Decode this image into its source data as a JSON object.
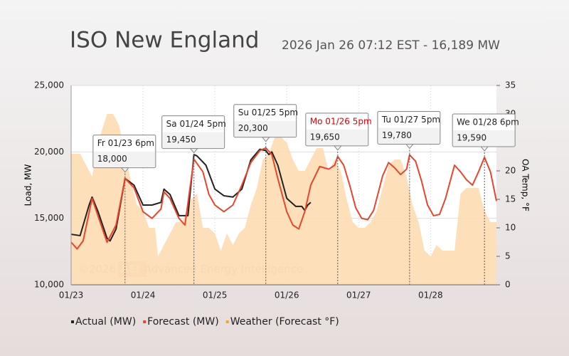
{
  "chart_data": {
    "type": "line",
    "title": "ISO New England",
    "subtitle": "2026 Jan 26 07:12 EST - 16,189 MW",
    "ylabel": "Load, MW",
    "y2label": "OA Temp, °F",
    "watermark": {
      "year": "©2026",
      "logo": "AEI",
      "text": "Advanced Energy Intelligence"
    },
    "xlim": [
      0,
      142
    ],
    "xticks": [
      {
        "value": 0,
        "label": "01/23"
      },
      {
        "value": 24,
        "label": "01/24"
      },
      {
        "value": 48,
        "label": "01/25"
      },
      {
        "value": 72,
        "label": "01/26"
      },
      {
        "value": 96,
        "label": "01/27"
      },
      {
        "value": 120,
        "label": "01/28"
      }
    ],
    "ylim": [
      10000,
      25000
    ],
    "yticks": [
      {
        "value": 10000,
        "label": "10,000"
      },
      {
        "value": 15000,
        "label": "15,000"
      },
      {
        "value": 20000,
        "label": "20,000"
      },
      {
        "value": 25000,
        "label": "25,000"
      }
    ],
    "y2lim": [
      0,
      35
    ],
    "y2ticks": [
      0,
      5,
      10,
      15,
      20,
      25,
      30,
      35
    ],
    "series": [
      {
        "name": "Weather (Forecast °F)",
        "kind": "area",
        "axis": "y2",
        "color": "#fddcb2",
        "legend_color": "#f5a623",
        "x": [
          0,
          3,
          5,
          7,
          9,
          12,
          14,
          16,
          18,
          20,
          22,
          24,
          26,
          28,
          29,
          31,
          33,
          35,
          37,
          40,
          42,
          44,
          46,
          48,
          50,
          52,
          54,
          56,
          58,
          60,
          62,
          64,
          66,
          68,
          70,
          72,
          74,
          76,
          78,
          80,
          82,
          84,
          86,
          88,
          90,
          92,
          94,
          96,
          98,
          100,
          102,
          104,
          106,
          108,
          110,
          112,
          114,
          116,
          118,
          120,
          122,
          124,
          126,
          128,
          130,
          132,
          134,
          136,
          138,
          140,
          142
        ],
        "values": [
          23,
          23,
          21,
          19,
          25,
          30,
          30,
          28,
          23,
          18,
          14,
          13,
          10,
          10,
          5,
          7,
          9,
          11,
          11,
          15,
          16,
          10,
          10,
          9,
          6,
          9,
          7,
          9,
          10,
          14,
          17,
          22,
          23,
          26,
          26,
          25,
          22,
          20,
          20,
          22,
          24,
          24,
          20,
          22,
          20,
          15,
          11,
          10,
          10,
          11,
          13,
          17,
          21,
          22,
          22,
          19,
          14,
          11,
          6,
          5,
          7,
          6,
          6,
          6,
          16,
          17,
          17,
          17,
          13,
          11,
          11
        ]
      },
      {
        "name": "Actual (MW)",
        "kind": "line",
        "color": "#222222",
        "x": [
          0,
          3,
          6,
          7,
          9,
          12,
          13,
          15,
          18,
          21,
          24,
          27,
          30,
          31,
          33,
          36,
          39,
          41,
          42,
          45,
          48,
          51,
          54,
          57,
          60,
          63,
          65,
          66,
          67,
          69,
          72,
          75,
          77,
          78,
          79,
          80
        ],
        "values": [
          13800,
          13700,
          16000,
          16600,
          15500,
          13500,
          13300,
          14200,
          18000,
          17500,
          16000,
          16000,
          16200,
          17200,
          16800,
          15200,
          15200,
          19800,
          19700,
          19000,
          17200,
          16700,
          16600,
          17200,
          19400,
          20200,
          20100,
          19800,
          20000,
          19000,
          16500,
          15900,
          15900,
          15600,
          16000,
          16200
        ]
      },
      {
        "name": "Forecast (MW)",
        "kind": "line",
        "color": "#e8452c",
        "x": [
          0,
          2,
          4,
          7,
          10,
          12,
          15,
          18,
          21,
          24,
          27,
          30,
          31,
          33,
          36,
          38,
          41,
          44,
          46,
          48,
          51,
          54,
          57,
          60,
          63,
          65,
          67,
          69,
          72,
          74,
          76,
          78,
          80,
          83,
          86,
          88,
          89,
          91,
          93,
          95,
          97,
          99,
          101,
          104,
          106,
          108,
          110,
          112,
          113,
          115,
          117,
          119,
          121,
          123,
          125,
          128,
          130,
          132,
          134,
          136,
          138,
          140,
          142
        ],
        "values": [
          13200,
          12700,
          13300,
          16500,
          14500,
          13200,
          14500,
          18000,
          17300,
          15500,
          15000,
          15700,
          17000,
          16500,
          15000,
          14500,
          19450,
          18500,
          16800,
          16000,
          15500,
          16000,
          17500,
          19200,
          20100,
          20300,
          19800,
          18000,
          15500,
          14500,
          14200,
          15500,
          17500,
          18900,
          18700,
          19000,
          19650,
          19000,
          17500,
          15800,
          15000,
          14900,
          15600,
          18200,
          19200,
          18800,
          18300,
          18700,
          19780,
          19300,
          17800,
          16000,
          15200,
          15300,
          16500,
          19000,
          18500,
          17900,
          17500,
          18500,
          19590,
          18500,
          16300
        ]
      }
    ],
    "callouts": [
      {
        "label": "Fr 01/23 6pm",
        "x": 18,
        "value": 18000,
        "value_label": "18,000",
        "color": "#222222"
      },
      {
        "label": "Sa 01/24 5pm",
        "x": 41,
        "value": 19450,
        "value_label": "19,450",
        "color": "#222222"
      },
      {
        "label": "Su 01/25 5pm",
        "x": 65,
        "value": 20300,
        "value_label": "20,300",
        "color": "#222222"
      },
      {
        "label": "Mo 01/26 5pm",
        "x": 89,
        "value": 19650,
        "value_label": "19,650",
        "color": "#dd0000"
      },
      {
        "label": "Tu 01/27 5pm",
        "x": 113,
        "value": 19780,
        "value_label": "19,780",
        "color": "#222222"
      },
      {
        "label": "We 01/28 6pm",
        "x": 138,
        "value": 19590,
        "value_label": "19,590",
        "color": "#222222"
      }
    ]
  }
}
